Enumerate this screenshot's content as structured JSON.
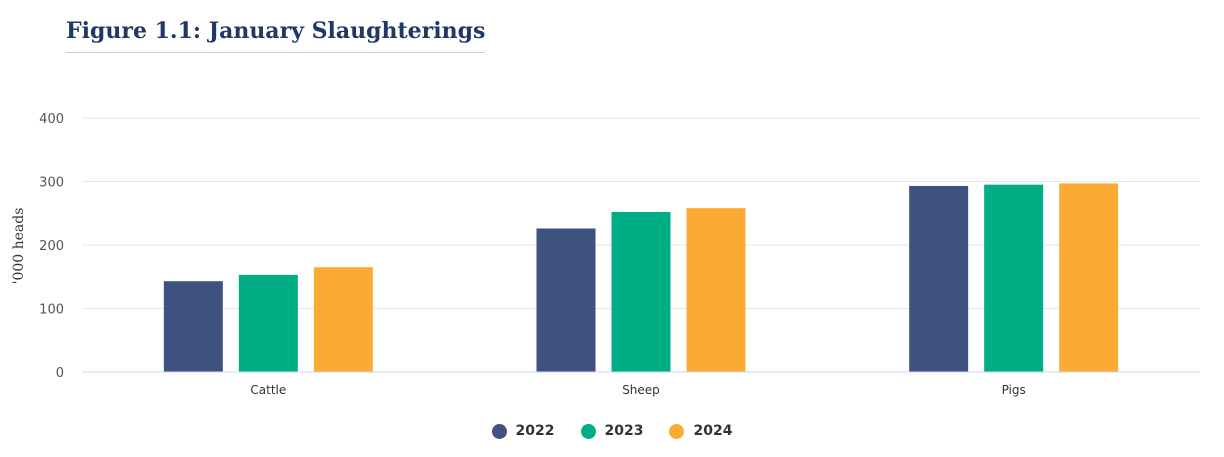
{
  "title": "Figure 1.1: January Slaughterings",
  "chart_data": {
    "type": "bar",
    "title": "Figure 1.1: January Slaughterings",
    "xlabel": "",
    "ylabel": "'000 heads",
    "ylim": [
      0,
      400
    ],
    "yticks": [
      0,
      100,
      200,
      300,
      400
    ],
    "grid": true,
    "legend_position": "bottom",
    "categories": [
      "Cattle",
      "Sheep",
      "Pigs"
    ],
    "series": [
      {
        "name": "2022",
        "color": "#3f527f",
        "values": [
          143,
          226,
          293
        ]
      },
      {
        "name": "2023",
        "color": "#00ae86",
        "values": [
          153,
          252,
          295
        ]
      },
      {
        "name": "2024",
        "color": "#fbaa33",
        "values": [
          165,
          258,
          297
        ]
      }
    ]
  }
}
